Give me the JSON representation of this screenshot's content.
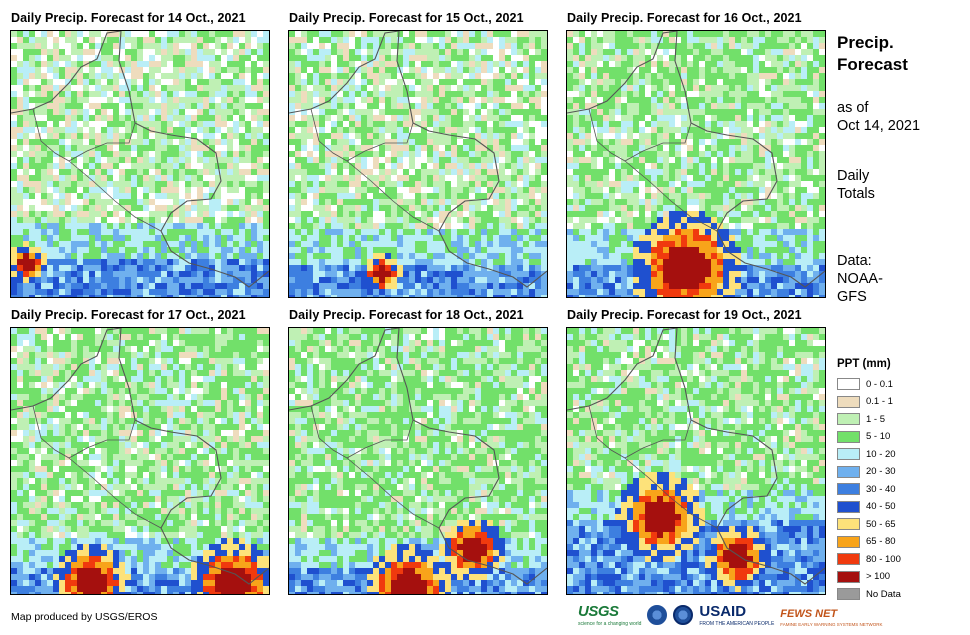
{
  "panels": [
    {
      "title": "Daily Precip. Forecast for 14 Oct., 2021"
    },
    {
      "title": "Daily Precip. Forecast for 15 Oct., 2021"
    },
    {
      "title": "Daily Precip. Forecast for 16 Oct., 2021"
    },
    {
      "title": "Daily Precip. Forecast for 17 Oct., 2021"
    },
    {
      "title": "Daily Precip. Forecast for 18 Oct., 2021"
    },
    {
      "title": "Daily Precip. Forecast for 19 Oct., 2021"
    }
  ],
  "sidebar": {
    "title_line1": "Precip.",
    "title_line2": "Forecast",
    "asof_line1": "as of",
    "asof_line2": "Oct 14, 2021",
    "totals_line1": "Daily",
    "totals_line2": "Totals",
    "data_line1": "Data:",
    "data_line2": "NOAA-",
    "data_line3": "GFS"
  },
  "legend": {
    "title": "PPT (mm)",
    "classes": [
      {
        "label": "0 - 0.1",
        "color": "#ffffff"
      },
      {
        "label": "0.1 - 1",
        "color": "#eedcbd"
      },
      {
        "label": "1 - 5",
        "color": "#bff0b4"
      },
      {
        "label": "5 - 10",
        "color": "#72e06a"
      },
      {
        "label": "10 - 20",
        "color": "#b9eef7"
      },
      {
        "label": "20 - 30",
        "color": "#6fb0ee"
      },
      {
        "label": "30 - 40",
        "color": "#3d7fe0"
      },
      {
        "label": "40 - 50",
        "color": "#1f50cf"
      },
      {
        "label": "50 - 65",
        "color": "#fde27a"
      },
      {
        "label": "65 - 80",
        "color": "#f8a41a"
      },
      {
        "label": "80 - 100",
        "color": "#f03a0e"
      },
      {
        "label": "> 100",
        "color": "#a5100e"
      },
      {
        "label": "No Data",
        "color": "#9a9a9a"
      }
    ]
  },
  "footer": {
    "credit": "Map produced by USGS/EROS",
    "logo_usgs": "USGS",
    "logo_usgs_sub": "science for a changing world",
    "logo_usaid": "USAID",
    "logo_usaid_sub": "FROM THE AMERICAN PEOPLE",
    "logo_fews": "FEWS NET",
    "logo_fews_sub": "FAMINE EARLY WARNING SYSTEMS NETWORK"
  }
}
